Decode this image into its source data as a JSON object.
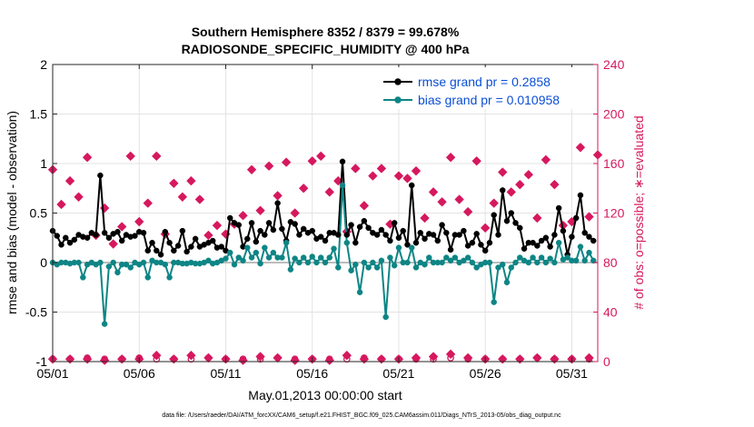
{
  "chart_data": {
    "type": "line",
    "title": "Southern Hemisphere 8352 / 8379 = 99.678%",
    "subtitle": "RADIOSONDE_SPECIFIC_HUMIDITY @ 400 hPa",
    "xlabel": "May.01,2013 00:00:00 start",
    "ylabel_left": "rmse and bias (model - observation)",
    "ylabel_right": "# of obs: o=possible; ∗=evaluated",
    "footer": "data file: /Users/raeder/DAI/ATM_forcXX/CAM6_setup/f.e21.FHIST_BGC.f09_025.CAM6assim.011/Diags_NTrS_2013-05/obs_diag_output.nc",
    "xlim": [
      0,
      31.5
    ],
    "ylim_left": [
      -1,
      2
    ],
    "ylim_right": [
      0,
      240
    ],
    "x_ticks": [
      0,
      5,
      10,
      15,
      20,
      25,
      30
    ],
    "x_tick_labels": [
      "05/01",
      "05/06",
      "05/11",
      "05/16",
      "05/21",
      "05/26",
      "05/31"
    ],
    "y_left_ticks": [
      "-1",
      "-0.5",
      "0",
      "0.5",
      "1",
      "1.5",
      "2"
    ],
    "y_left_tick_values": [
      -1,
      -0.5,
      0,
      0.5,
      1,
      1.5,
      2
    ],
    "y_right_ticks": [
      "0",
      "40",
      "80",
      "120",
      "160",
      "200",
      "240"
    ],
    "y_right_tick_values": [
      0,
      40,
      80,
      120,
      160,
      200,
      240
    ],
    "grid": true,
    "legend_position": "top-right",
    "legend": [
      {
        "label": "rmse grand pr = 0.2858",
        "color": "#000000"
      },
      {
        "label": "bias grand pr = 0.010958",
        "color": "#0e8585"
      }
    ],
    "series": [
      {
        "name": "rmse",
        "color": "#000000",
        "x": [
          0.0,
          0.25,
          0.5,
          0.75,
          1.0,
          1.25,
          1.5,
          1.75,
          2.0,
          2.25,
          2.5,
          2.75,
          3.0,
          3.25,
          3.5,
          3.75,
          4.0,
          4.25,
          4.5,
          4.75,
          5.0,
          5.25,
          5.5,
          5.75,
          6.0,
          6.25,
          6.5,
          6.75,
          7.0,
          7.25,
          7.5,
          7.75,
          8.0,
          8.25,
          8.5,
          8.75,
          9.0,
          9.25,
          9.5,
          9.75,
          10.0,
          10.25,
          10.5,
          10.75,
          11.0,
          11.25,
          11.5,
          11.75,
          12.0,
          12.25,
          12.5,
          12.75,
          13.0,
          13.25,
          13.5,
          13.75,
          14.0,
          14.25,
          14.5,
          14.75,
          15.0,
          15.25,
          15.5,
          15.75,
          16.0,
          16.25,
          16.5,
          16.75,
          17.0,
          17.25,
          17.5,
          17.75,
          18.0,
          18.25,
          18.5,
          18.75,
          19.0,
          19.25,
          19.5,
          19.75,
          20.0,
          20.25,
          20.5,
          20.75,
          21.0,
          21.25,
          21.5,
          21.75,
          22.0,
          22.25,
          22.5,
          22.75,
          23.0,
          23.25,
          23.5,
          23.75,
          24.0,
          24.25,
          24.5,
          24.75,
          25.0,
          25.25,
          25.5,
          25.75,
          26.0,
          26.25,
          26.5,
          26.75,
          27.0,
          27.25,
          27.5,
          27.75,
          28.0,
          28.25,
          28.5,
          28.75,
          29.0,
          29.25,
          29.5,
          29.75,
          30.0,
          30.25,
          30.5,
          30.75,
          31.0,
          31.25
        ],
        "values": [
          0.32,
          0.27,
          0.18,
          0.25,
          0.2,
          0.23,
          0.28,
          0.26,
          0.25,
          0.3,
          0.28,
          0.88,
          0.3,
          0.25,
          0.29,
          0.31,
          0.22,
          0.28,
          0.26,
          0.27,
          0.31,
          0.3,
          0.12,
          0.2,
          0.12,
          0.08,
          0.31,
          0.2,
          0.12,
          0.17,
          0.32,
          0.11,
          0.16,
          0.24,
          0.16,
          0.18,
          0.2,
          0.22,
          0.15,
          0.16,
          0.12,
          0.45,
          0.4,
          0.38,
          0.16,
          0.24,
          0.4,
          0.21,
          0.32,
          0.28,
          0.4,
          0.33,
          0.6,
          0.34,
          0.22,
          0.41,
          0.39,
          0.28,
          0.34,
          0.3,
          0.32,
          0.24,
          0.26,
          0.22,
          0.3,
          0.3,
          0.28,
          1.02,
          0.28,
          0.38,
          0.2,
          0.36,
          0.42,
          0.35,
          0.3,
          0.28,
          0.33,
          0.28,
          0.22,
          0.4,
          0.25,
          0.32,
          0.18,
          0.78,
          0.2,
          0.3,
          0.24,
          0.29,
          0.28,
          0.22,
          0.38,
          0.3,
          0.13,
          0.28,
          0.28,
          0.32,
          0.17,
          0.2,
          0.29,
          0.18,
          0.12,
          0.2,
          0.48,
          0.28,
          0.73,
          0.42,
          0.5,
          0.4,
          0.35,
          0.14,
          0.2,
          0.2,
          0.17,
          0.22,
          0.25,
          0.16,
          0.28,
          0.55,
          0.32,
          0.08,
          0.26,
          0.45,
          0.68,
          0.3,
          0.26,
          0.22
        ]
      },
      {
        "name": "bias",
        "color": "#0e8585",
        "x": [
          0.0,
          0.25,
          0.5,
          0.75,
          1.0,
          1.25,
          1.5,
          1.75,
          2.0,
          2.25,
          2.5,
          2.75,
          3.0,
          3.25,
          3.5,
          3.75,
          4.0,
          4.25,
          4.5,
          4.75,
          5.0,
          5.25,
          5.5,
          5.75,
          6.0,
          6.25,
          6.5,
          6.75,
          7.0,
          7.25,
          7.5,
          7.75,
          8.0,
          8.25,
          8.5,
          8.75,
          9.0,
          9.25,
          9.5,
          9.75,
          10.0,
          10.25,
          10.5,
          10.75,
          11.0,
          11.25,
          11.5,
          11.75,
          12.0,
          12.25,
          12.5,
          12.75,
          13.0,
          13.25,
          13.5,
          13.75,
          14.0,
          14.25,
          14.5,
          14.75,
          15.0,
          15.25,
          15.5,
          15.75,
          16.0,
          16.25,
          16.5,
          16.75,
          17.0,
          17.25,
          17.5,
          17.75,
          18.0,
          18.25,
          18.5,
          18.75,
          19.0,
          19.25,
          19.5,
          19.75,
          20.0,
          20.25,
          20.5,
          20.75,
          21.0,
          21.25,
          21.5,
          21.75,
          22.0,
          22.25,
          22.5,
          22.75,
          23.0,
          23.25,
          23.5,
          23.75,
          24.0,
          24.25,
          24.5,
          24.75,
          25.0,
          25.25,
          25.5,
          25.75,
          26.0,
          26.25,
          26.5,
          26.75,
          27.0,
          27.25,
          27.5,
          27.75,
          28.0,
          28.25,
          28.5,
          28.75,
          29.0,
          29.25,
          29.5,
          29.75,
          30.0,
          30.25,
          30.5,
          30.75,
          31.0,
          31.25
        ],
        "values": [
          0.0,
          -0.02,
          0.0,
          0.0,
          -0.01,
          0.0,
          0.0,
          -0.15,
          -0.02,
          0.0,
          -0.02,
          0.0,
          -0.62,
          -0.04,
          0.0,
          -0.1,
          -0.02,
          -0.02,
          -0.05,
          0.0,
          -0.02,
          0.0,
          -0.15,
          0.02,
          0.0,
          0.0,
          -0.02,
          -0.15,
          0.0,
          0.0,
          -0.01,
          -0.01,
          0.0,
          -0.01,
          -0.01,
          0.0,
          0.02,
          -0.01,
          0.0,
          0.02,
          0.04,
          0.1,
          -0.02,
          0.05,
          0.02,
          0.15,
          0.05,
          0.1,
          -0.01,
          0.15,
          0.05,
          0.1,
          0.05,
          0.05,
          0.2,
          -0.07,
          0.04,
          0.0,
          0.05,
          0.0,
          0.06,
          0.0,
          0.05,
          0.0,
          0.05,
          0.14,
          -0.05,
          0.78,
          0.2,
          -0.08,
          -0.02,
          -0.3,
          0.0,
          -0.05,
          0.0,
          -0.05,
          0.02,
          -0.55,
          0.05,
          -0.03,
          0.15,
          0.0,
          0.0,
          0.15,
          -0.05,
          0.0,
          -0.02,
          0.05,
          0.0,
          0.0,
          0.0,
          0.05,
          0.02,
          0.05,
          0.0,
          0.02,
          0.05,
          0.0,
          -0.05,
          -0.02,
          0.0,
          0.0,
          -0.4,
          -0.05,
          -0.02,
          -0.2,
          -0.05,
          0.0,
          0.05,
          0.02,
          0.0,
          0.05,
          0.0,
          0.05,
          0.0,
          0.04,
          0.0,
          0.2,
          0.03,
          0.05,
          0.02,
          0.02,
          0.16,
          0.02,
          0.1,
          0.02
        ]
      },
      {
        "name": "# of obs possible",
        "axis": "right",
        "marker": "o",
        "color": "#d6185e",
        "x": [
          0.0,
          1.0,
          2.0,
          3.0,
          4.0,
          5.0,
          6.0,
          7.0,
          8.0,
          9.0,
          10.0,
          11.0,
          12.0,
          13.0,
          14.0,
          15.0,
          16.0,
          17.0,
          18.0,
          19.0,
          20.0,
          21.0,
          22.0,
          23.0,
          24.0,
          25.0,
          26.0,
          27.0,
          28.0,
          29.0,
          30.0,
          31.0
        ],
        "values": [
          2,
          2,
          3,
          2,
          2,
          3,
          2,
          2,
          2,
          3,
          2,
          2,
          2,
          3,
          2,
          2,
          2,
          2,
          3,
          2,
          2,
          2,
          2,
          3,
          2,
          2,
          2,
          2,
          3,
          2,
          2,
          2
        ]
      },
      {
        "name": "# of obs evaluated (12Z)",
        "axis": "right",
        "marker": "*",
        "color": "#d6185e",
        "x": [
          0.0,
          0.5,
          1.0,
          1.5,
          2.0,
          2.5,
          3.0,
          3.5,
          4.0,
          4.5,
          5.0,
          5.5,
          6.0,
          6.5,
          7.0,
          7.5,
          8.0,
          8.5,
          9.0,
          9.5,
          10.0,
          10.5,
          11.0,
          11.5,
          12.0,
          12.5,
          13.0,
          13.5,
          14.0,
          14.5,
          15.0,
          15.5,
          16.0,
          16.5,
          17.0,
          17.5,
          18.0,
          18.5,
          19.0,
          19.5,
          20.0,
          20.5,
          21.0,
          21.5,
          22.0,
          22.5,
          23.0,
          23.5,
          24.0,
          24.5,
          25.0,
          25.5,
          26.0,
          26.5,
          27.0,
          27.5,
          28.0,
          28.5,
          29.0,
          29.5,
          30.0,
          30.5,
          31.0,
          31.5
        ],
        "values": [
          155,
          127,
          146,
          133,
          165,
          102,
          124,
          95,
          109,
          166,
          113,
          128,
          166,
          103,
          144,
          133,
          146,
          131,
          102,
          110,
          103,
          111,
          118,
          155,
          122,
          158,
          134,
          161,
          120,
          140,
          162,
          166,
          137,
          146,
          105,
          156,
          126,
          150,
          156,
          111,
          150,
          148,
          154,
          116,
          137,
          129,
          165,
          131,
          121,
          162,
          108,
          128,
          153,
          137,
          143,
          151,
          116,
          163,
          143,
          110,
          113,
          173,
          117,
          167
        ]
      },
      {
        "name": "# of obs evaluated (00Z)",
        "axis": "right",
        "marker": "*",
        "color": "#d6185e",
        "x": [
          0.0,
          1.0,
          2.0,
          3.0,
          4.0,
          5.0,
          6.0,
          7.0,
          8.0,
          9.0,
          10.0,
          11.0,
          12.0,
          13.0,
          14.0,
          15.0,
          16.0,
          17.0,
          18.0,
          19.0,
          20.0,
          21.0,
          22.0,
          23.0,
          24.0,
          25.0,
          26.0,
          27.0,
          28.0,
          29.0,
          30.0,
          31.0
        ],
        "values": [
          2,
          2,
          2,
          1,
          2,
          2,
          5,
          2,
          5,
          3,
          2,
          1,
          4,
          3,
          1,
          2,
          1,
          5,
          2,
          2,
          2,
          3,
          4,
          6,
          3,
          2,
          2,
          2,
          3,
          2,
          2,
          3
        ]
      }
    ]
  }
}
